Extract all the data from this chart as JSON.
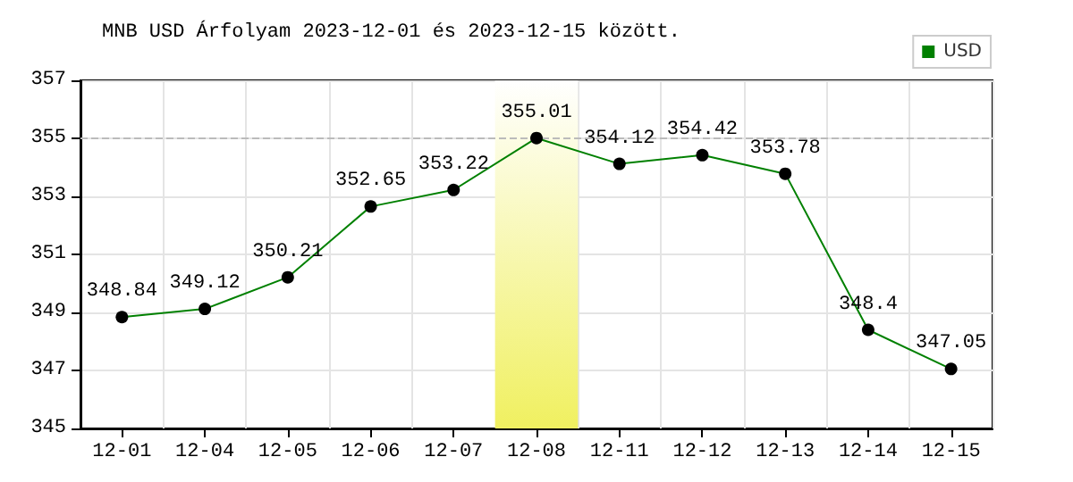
{
  "chart_data": {
    "type": "line",
    "title": "MNB USD Árfolyam 2023-12-01 és 2023-12-15 között.",
    "categories": [
      "12-01",
      "12-04",
      "12-05",
      "12-06",
      "12-07",
      "12-08",
      "12-11",
      "12-12",
      "12-13",
      "12-14",
      "12-15"
    ],
    "series": [
      {
        "name": "USD",
        "color": "#008000",
        "values": [
          348.84,
          349.12,
          350.21,
          352.65,
          353.22,
          355.01,
          354.12,
          354.42,
          353.78,
          348.4,
          347.05
        ]
      }
    ],
    "ylim": [
      345,
      357
    ],
    "yticks": [
      345,
      347,
      349,
      351,
      353,
      355,
      357
    ],
    "ref_lines": [
      {
        "axis": "y",
        "value": 355,
        "color": "#bbbbbb",
        "line_style": "dashed"
      }
    ],
    "bands": [
      {
        "axis": "x",
        "from": "12-08",
        "to": "12-08",
        "color": "#f0f060"
      }
    ],
    "data_labels": true,
    "grid": true,
    "legend": "top right",
    "marker": "circle"
  }
}
